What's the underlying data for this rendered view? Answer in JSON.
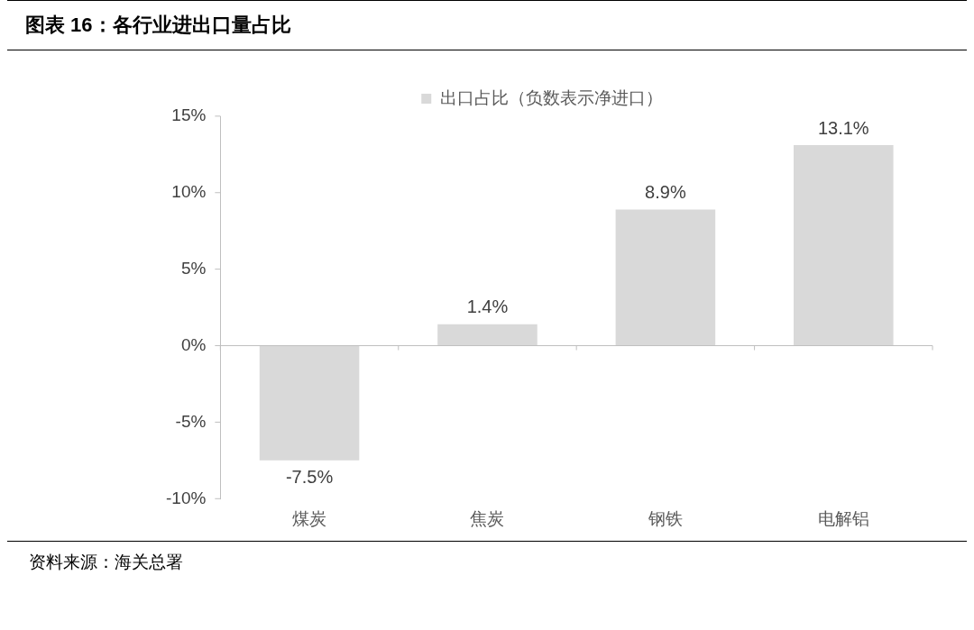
{
  "chart_data": {
    "type": "bar",
    "title": "图表 16：各行业进出口量占比",
    "categories": [
      "煤炭",
      "焦炭",
      "钢铁",
      "电解铝"
    ],
    "series": [
      {
        "name": "出口占比（负数表示净进口）",
        "color": "#d9d9d9",
        "values": [
          -7.5,
          1.4,
          8.9,
          13.1
        ],
        "value_labels": [
          "-7.5%",
          "1.4%",
          "8.9%",
          "13.1%"
        ]
      }
    ],
    "ylim": [
      -10,
      15
    ],
    "yticks": [
      {
        "value": -10,
        "label": "-10%"
      },
      {
        "value": -5,
        "label": "-5%"
      },
      {
        "value": 0,
        "label": "0%"
      },
      {
        "value": 5,
        "label": "5%"
      },
      {
        "value": 10,
        "label": "10%"
      },
      {
        "value": 15,
        "label": "15%"
      }
    ],
    "legend": "top",
    "annotations": [
      "资料来源：海关总署"
    ]
  }
}
